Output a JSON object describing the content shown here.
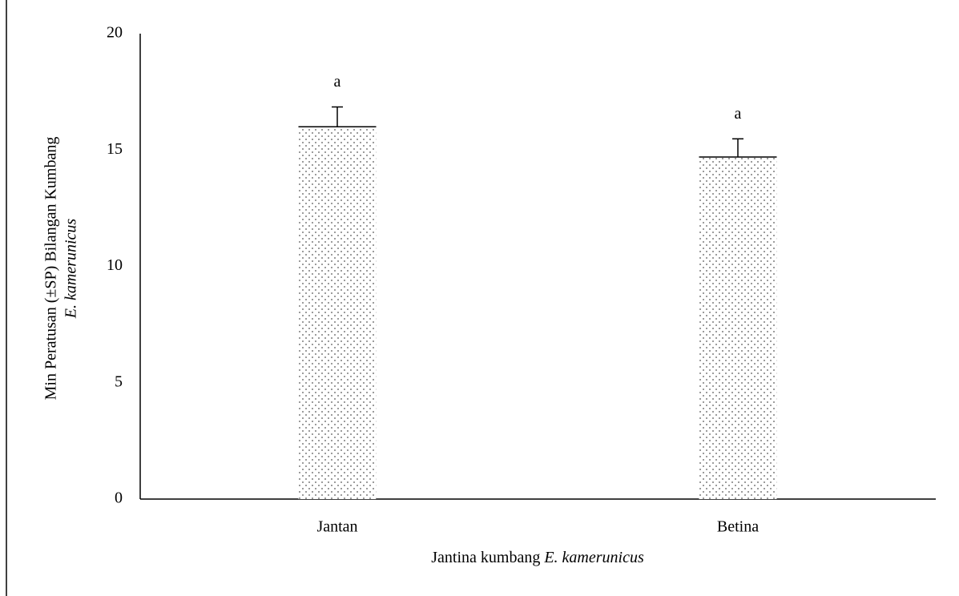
{
  "chart_data": {
    "type": "bar",
    "ylabel": [
      "Min Peratusan  (±SP) Bilangan Kumbang",
      "E. kamerunicus"
    ],
    "xlabel": {
      "text": "Jantina kumbang",
      "species": "E. kamerunicus"
    },
    "categories": [
      "Jantan",
      "Betina"
    ],
    "values": [
      16.0,
      14.7
    ],
    "errors": [
      0.85,
      0.78
    ],
    "annotations": [
      "a",
      "a"
    ],
    "color": "#555555",
    "ylim": [
      0,
      20
    ],
    "yticks": [
      0,
      5,
      10,
      15,
      20
    ],
    "grid": false
  }
}
